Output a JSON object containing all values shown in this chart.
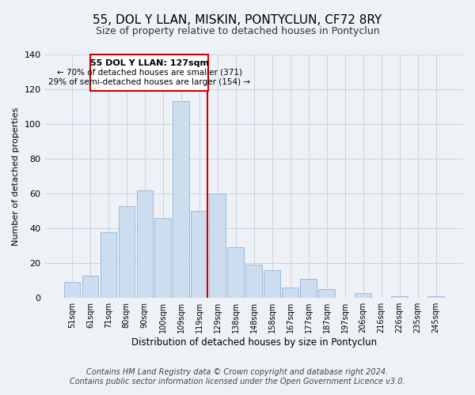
{
  "title": "55, DOL Y LLAN, MISKIN, PONTYCLUN, CF72 8RY",
  "subtitle": "Size of property relative to detached houses in Pontyclun",
  "xlabel": "Distribution of detached houses by size in Pontyclun",
  "ylabel": "Number of detached properties",
  "categories": [
    "51sqm",
    "61sqm",
    "71sqm",
    "80sqm",
    "90sqm",
    "100sqm",
    "109sqm",
    "119sqm",
    "129sqm",
    "138sqm",
    "148sqm",
    "158sqm",
    "167sqm",
    "177sqm",
    "187sqm",
    "197sqm",
    "206sqm",
    "216sqm",
    "226sqm",
    "235sqm",
    "245sqm"
  ],
  "values": [
    9,
    13,
    38,
    53,
    62,
    46,
    113,
    50,
    60,
    29,
    19,
    16,
    6,
    11,
    5,
    0,
    3,
    0,
    1,
    0,
    1
  ],
  "bar_color": "#ccddef",
  "bar_edge_color": "#99bbdd",
  "vline_color": "#cc0000",
  "vline_x_index": 7,
  "annotation_title": "55 DOL Y LLAN: 127sqm",
  "annotation_line1": "← 70% of detached houses are smaller (371)",
  "annotation_line2": "29% of semi-detached houses are larger (154) →",
  "annotation_box_color": "#ffffff",
  "annotation_box_edge": "#cc0000",
  "ylim": [
    0,
    140
  ],
  "yticks": [
    0,
    20,
    40,
    60,
    80,
    100,
    120,
    140
  ],
  "footer1": "Contains HM Land Registry data © Crown copyright and database right 2024.",
  "footer2": "Contains public sector information licensed under the Open Government Licence v3.0.",
  "bg_color": "#eef2f7",
  "plot_bg_color": "#eef2f7",
  "grid_color": "#c8d4e0",
  "title_fontsize": 11,
  "subtitle_fontsize": 9,
  "footer_fontsize": 7
}
